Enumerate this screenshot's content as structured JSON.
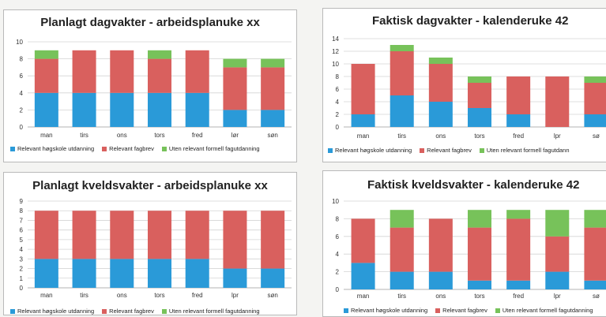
{
  "colors": {
    "hoyskole": "#2a9ad8",
    "fagbrev": "#d9605e",
    "uten": "#77c25a",
    "grid": "#d4d4d4",
    "axis": "#9a9a9a"
  },
  "legend": {
    "hoyskole": "Relevant høgskole utdanning",
    "fagbrev": "Relevant fagbrev",
    "uten": "Uten relevant formell fagutdanning",
    "uten_alt": "Uten relevant formell fagutdann"
  },
  "chart_data": [
    {
      "type": "bar",
      "title": "Planlagt dagvakter - arbeidsplanuke xx",
      "categories": [
        "man",
        "tirs",
        "ons",
        "tors",
        "fred",
        "lør",
        "søn"
      ],
      "ylim": [
        0,
        10
      ],
      "yticks": [
        0,
        2,
        4,
        6,
        8,
        10
      ],
      "grid": true,
      "legend": "bottom",
      "series": [
        {
          "name": "Relevant høgskole utdanning",
          "values": [
            4,
            4,
            4,
            4,
            4,
            2,
            2
          ]
        },
        {
          "name": "Relevant fagbrev",
          "values": [
            4,
            5,
            5,
            4,
            5,
            5,
            5
          ]
        },
        {
          "name": "Uten relevant formell fagutdanning",
          "values": [
            1,
            0,
            0,
            1,
            0,
            1,
            1
          ]
        }
      ]
    },
    {
      "type": "bar",
      "title": "Faktisk dagvakter - kalenderuke 42",
      "categories": [
        "man",
        "tirs",
        "ons",
        "tors",
        "fred",
        "lpr",
        "sø"
      ],
      "ylim": [
        0,
        14
      ],
      "yticks": [
        0,
        2,
        4,
        6,
        8,
        10,
        12,
        14
      ],
      "grid": true,
      "legend": "bottom",
      "series": [
        {
          "name": "Relevant høgskole utdanning",
          "values": [
            2,
            5,
            4,
            3,
            2,
            0,
            2
          ]
        },
        {
          "name": "Relevant fagbrev",
          "values": [
            8,
            7,
            6,
            4,
            6,
            8,
            5
          ]
        },
        {
          "name": "Uten relevant formell fagutdann",
          "values": [
            0,
            1,
            1,
            1,
            0,
            0,
            1
          ]
        }
      ]
    },
    {
      "type": "bar",
      "title": "Planlagt kveldsvakter - arbeidsplanuke xx",
      "categories": [
        "man",
        "tirs",
        "ons",
        "tors",
        "fred",
        "lpr",
        "søn"
      ],
      "ylim": [
        0,
        9
      ],
      "yticks": [
        0,
        1,
        2,
        3,
        4,
        5,
        6,
        7,
        8,
        9
      ],
      "grid": true,
      "legend": "bottom",
      "series": [
        {
          "name": "Relevant høgskole utdanning",
          "values": [
            3,
            3,
            3,
            3,
            3,
            2,
            2
          ]
        },
        {
          "name": "Relevant fagbrev",
          "values": [
            5,
            5,
            5,
            5,
            5,
            6,
            6
          ]
        },
        {
          "name": "Uten relevant formell fagutdanning",
          "values": [
            0,
            0,
            0,
            0,
            0,
            0,
            0
          ]
        }
      ]
    },
    {
      "type": "bar",
      "title": "Faktisk kveldsvakter - kalenderuke 42",
      "categories": [
        "man",
        "tirs",
        "ons",
        "tors",
        "fred",
        "lpr",
        "sø"
      ],
      "ylim": [
        0,
        10
      ],
      "yticks": [
        0,
        2,
        4,
        6,
        8,
        10
      ],
      "grid": true,
      "legend": "bottom",
      "series": [
        {
          "name": "Relevant høgskole utdanning",
          "values": [
            3,
            2,
            2,
            1,
            1,
            2,
            1
          ]
        },
        {
          "name": "Relevant fagbrev",
          "values": [
            5,
            5,
            6,
            6,
            7,
            4,
            6
          ]
        },
        {
          "name": "Uten relevant formell fagutdanning",
          "values": [
            0,
            2,
            0,
            2,
            1,
            3,
            2
          ]
        }
      ]
    }
  ]
}
